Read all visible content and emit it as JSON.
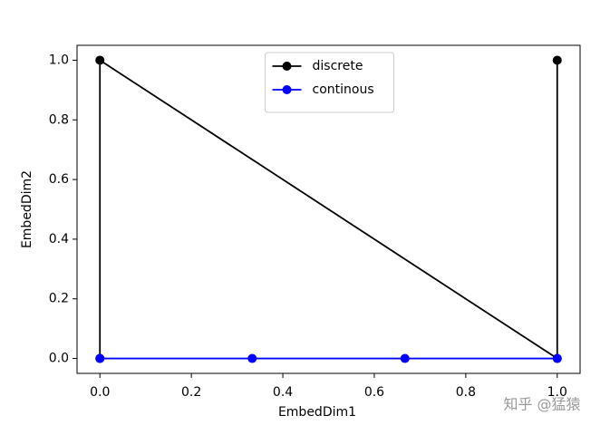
{
  "chart_data": {
    "type": "line",
    "xlabel": "EmbedDim1",
    "ylabel": "EmbedDim2",
    "xlim": [
      -0.05,
      1.05
    ],
    "ylim": [
      -0.05,
      1.05
    ],
    "xticks": [
      {
        "value": 0,
        "label": "0.0"
      },
      0.2,
      0.4,
      0.6,
      0.8,
      {
        "value": 1,
        "label": "1.0"
      }
    ],
    "yticks": [
      {
        "value": 0,
        "label": "0.0"
      },
      0.2,
      0.4,
      0.6,
      0.8,
      {
        "value": 1,
        "label": "1.0"
      }
    ],
    "legend": "upper center",
    "series": [
      {
        "name": "discrete",
        "color": "#000000",
        "x": [
          0,
          0,
          1,
          1
        ],
        "values": [
          0,
          1,
          0,
          1
        ]
      },
      {
        "name": "continous",
        "color": "#0000ff",
        "x": [
          0,
          0.333,
          0.667,
          1
        ],
        "values": [
          0,
          0,
          0,
          0
        ]
      }
    ]
  },
  "watermark": "知乎 @猛猿"
}
